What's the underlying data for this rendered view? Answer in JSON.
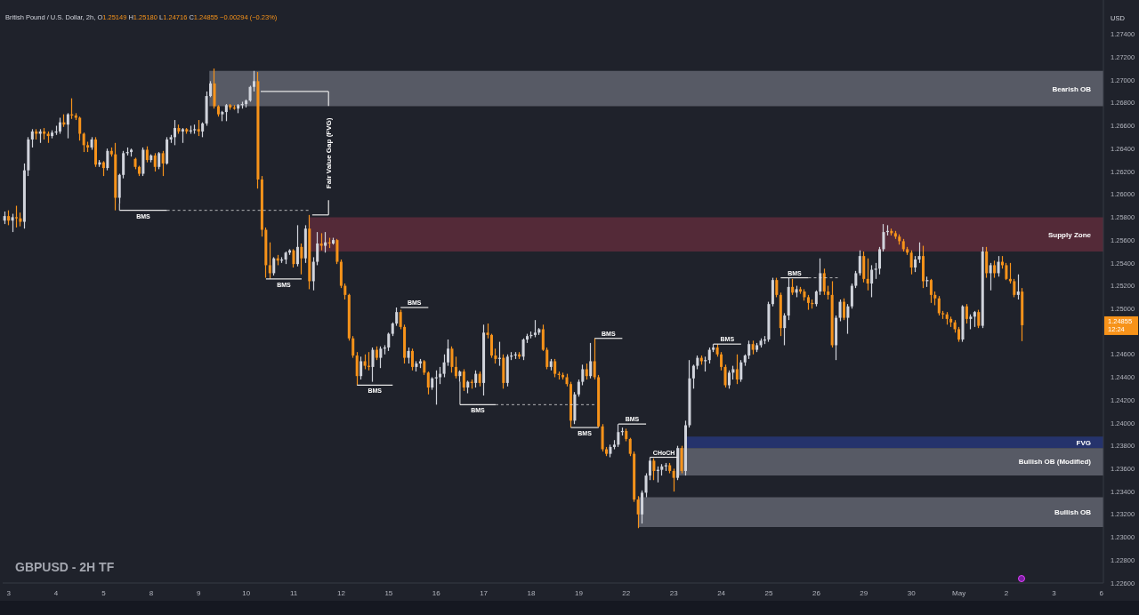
{
  "chart_data": {
    "type": "candlestick",
    "title": "GBPUSD - 2H TF",
    "subtitle": "British Pound / U.S. Dollar, 2h, O1.25149 H1.25180 L1.24716 C1.24855 −0.00294 (−0.23%)",
    "ylabel": "USD",
    "categories": [
      null,
      "3",
      null,
      null,
      null,
      null,
      null,
      null,
      null,
      null,
      null,
      null,
      null,
      "4",
      null,
      null,
      null,
      null,
      null,
      null,
      null,
      null,
      null,
      null,
      null,
      "5",
      null,
      null,
      null,
      null,
      null,
      null,
      null,
      null,
      null,
      null,
      null,
      "8",
      null,
      null,
      null,
      null,
      null,
      null,
      null,
      null,
      null,
      null,
      null,
      "9",
      null,
      null,
      null,
      null,
      null,
      null,
      null,
      null,
      null,
      null,
      null,
      "10",
      null,
      null,
      null,
      null,
      null,
      null,
      null,
      null,
      null,
      null,
      null,
      "11",
      null,
      null,
      null,
      null,
      null,
      null,
      null,
      null,
      null,
      null,
      null,
      "12",
      null,
      null,
      null,
      null,
      null,
      null,
      null,
      null,
      null,
      null,
      null,
      "15",
      null,
      null,
      null,
      null,
      null,
      null,
      null,
      null,
      null,
      null,
      null,
      "16",
      null,
      null,
      null,
      null,
      null,
      null,
      null,
      null,
      null,
      null,
      null,
      "17",
      null,
      null,
      null,
      null,
      null,
      null,
      null,
      null,
      null,
      null,
      null,
      "18",
      null,
      null,
      null,
      null,
      null,
      null,
      null,
      null,
      null,
      null,
      null,
      "19",
      null,
      null,
      null,
      null,
      null,
      null,
      null,
      null,
      null,
      null,
      null,
      "22",
      null,
      null,
      null,
      null,
      null,
      null,
      null,
      null,
      null,
      null,
      null,
      "23",
      null,
      null,
      null,
      null,
      null,
      null,
      null,
      null,
      null,
      null,
      null,
      "24",
      null,
      null,
      null,
      null,
      null,
      null,
      null,
      null,
      null,
      null,
      null,
      "25",
      null,
      null,
      null,
      null,
      null,
      null,
      null,
      null,
      null,
      null,
      null,
      "26",
      null,
      null,
      null,
      null,
      null,
      null,
      null,
      null,
      null,
      null,
      null,
      "29",
      null,
      null,
      null,
      null,
      null,
      null,
      null,
      null,
      null,
      null,
      null,
      "30",
      null,
      null,
      null,
      null,
      null,
      null,
      null,
      null,
      null,
      null,
      null,
      "May",
      null,
      null,
      null,
      null,
      null,
      null,
      null,
      null,
      null,
      null,
      null,
      "2",
      null,
      null,
      null,
      null,
      null,
      null,
      null,
      null,
      null,
      null,
      null,
      "3",
      null,
      null,
      null,
      null,
      null,
      null,
      null,
      null,
      null,
      null,
      null,
      "6"
    ],
    "ohlc": [
      [
        1.2577,
        1.2585,
        1.2574,
        1.2581
      ],
      [
        1.2581,
        1.2586,
        1.2573,
        1.2577
      ],
      [
        1.2577,
        1.2583,
        1.2567,
        1.258
      ],
      [
        1.258,
        1.259,
        1.2571,
        1.2579
      ],
      [
        1.2579,
        1.2584,
        1.2572,
        1.2576
      ],
      [
        1.2576,
        1.2627,
        1.257,
        1.2621
      ],
      [
        1.2621,
        1.265,
        1.2616,
        1.2648
      ],
      [
        1.2648,
        1.2657,
        1.2641,
        1.2655
      ],
      [
        1.2655,
        1.2657,
        1.2648,
        1.2653
      ],
      [
        1.2653,
        1.2657,
        1.2645,
        1.2655
      ],
      [
        1.2655,
        1.2658,
        1.2648,
        1.2653
      ],
      [
        1.2653,
        1.2655,
        1.2645,
        1.2651
      ],
      [
        1.2651,
        1.2656,
        1.2649,
        1.2654
      ],
      [
        1.2654,
        1.266,
        1.2652,
        1.2655
      ],
      [
        1.2655,
        1.2667,
        1.2653,
        1.2663
      ],
      [
        1.2663,
        1.267,
        1.2659,
        1.2661
      ],
      [
        1.2661,
        1.2671,
        1.2649,
        1.267
      ],
      [
        1.267,
        1.2684,
        1.2666,
        1.2669
      ],
      [
        1.2669,
        1.2671,
        1.2665,
        1.2667
      ],
      [
        1.2667,
        1.2668,
        1.2647,
        1.2653
      ],
      [
        1.2653,
        1.2654,
        1.2637,
        1.2643
      ],
      [
        1.2643,
        1.2646,
        1.2637,
        1.2641
      ],
      [
        1.2641,
        1.265,
        1.2639,
        1.2648
      ],
      [
        1.2648,
        1.265,
        1.2624,
        1.2626
      ],
      [
        1.2626,
        1.263,
        1.2624,
        1.2628
      ],
      [
        1.2628,
        1.2629,
        1.2616,
        1.2623
      ],
      [
        1.2623,
        1.264,
        1.2621,
        1.2638
      ],
      [
        1.2638,
        1.2641,
        1.2633,
        1.2635
      ],
      [
        1.2635,
        1.2645,
        1.2586,
        1.2597
      ],
      [
        1.2597,
        1.2618,
        1.2592,
        1.2617
      ],
      [
        1.2617,
        1.2638,
        1.2614,
        1.2636
      ],
      [
        1.2636,
        1.2641,
        1.2634,
        1.2637
      ],
      [
        1.2637,
        1.264,
        1.2633,
        1.2639
      ],
      [
        1.2631,
        1.2632,
        1.2622,
        1.2624
      ],
      [
        1.2624,
        1.2625,
        1.2616,
        1.2618
      ],
      [
        1.2618,
        1.2641,
        1.2616,
        1.2639
      ],
      [
        1.2639,
        1.2642,
        1.2628,
        1.263
      ],
      [
        1.263,
        1.2635,
        1.2628,
        1.2634
      ],
      [
        1.2634,
        1.2636,
        1.262,
        1.2624
      ],
      [
        1.2624,
        1.2637,
        1.2622,
        1.2636
      ],
      [
        1.2636,
        1.2638,
        1.2616,
        1.2627
      ],
      [
        1.2627,
        1.265,
        1.2626,
        1.2648
      ],
      [
        1.2648,
        1.2652,
        1.2645,
        1.265
      ],
      [
        1.265,
        1.2665,
        1.2643,
        1.2658
      ],
      [
        1.2658,
        1.2661,
        1.2653,
        1.2655
      ],
      [
        1.2655,
        1.2658,
        1.2645,
        1.2657
      ],
      [
        1.2657,
        1.2658,
        1.2653,
        1.2655
      ],
      [
        1.2655,
        1.266,
        1.2653,
        1.2656
      ],
      [
        1.2656,
        1.2661,
        1.2653,
        1.2657
      ],
      [
        1.2657,
        1.2665,
        1.2651,
        1.2655
      ],
      [
        1.2655,
        1.2663,
        1.265,
        1.2662
      ],
      [
        1.2662,
        1.269,
        1.266,
        1.2686
      ],
      [
        1.2686,
        1.2699,
        1.2685,
        1.2697
      ],
      [
        1.2697,
        1.271,
        1.2675,
        1.2677
      ],
      [
        1.2677,
        1.2678,
        1.2668,
        1.267
      ],
      [
        1.267,
        1.2673,
        1.2664,
        1.2672
      ],
      [
        1.2672,
        1.2679,
        1.2664,
        1.2678
      ],
      [
        1.2678,
        1.2679,
        1.2674,
        1.2676
      ],
      [
        1.2676,
        1.2678,
        1.2674,
        1.2675
      ],
      [
        1.2675,
        1.2679,
        1.2671,
        1.2678
      ],
      [
        1.2678,
        1.2681,
        1.2675,
        1.2679
      ],
      [
        1.2679,
        1.2683,
        1.2676,
        1.2682
      ],
      [
        1.2682,
        1.2695,
        1.2681,
        1.2694
      ],
      [
        1.2694,
        1.2708,
        1.269,
        1.2699
      ],
      [
        1.2699,
        1.2707,
        1.2605,
        1.2613
      ],
      [
        1.2613,
        1.2616,
        1.2563,
        1.2569
      ],
      [
        1.2569,
        1.2571,
        1.2527,
        1.2538
      ],
      [
        1.2538,
        1.2558,
        1.2526,
        1.2531
      ],
      [
        1.2531,
        1.2545,
        1.2529,
        1.2544
      ],
      [
        1.2544,
        1.2547,
        1.2538,
        1.2542
      ],
      [
        1.2542,
        1.2545,
        1.254,
        1.2543
      ],
      [
        1.2543,
        1.255,
        1.2539,
        1.2549
      ],
      [
        1.2549,
        1.2552,
        1.2547,
        1.2551
      ],
      [
        1.2551,
        1.2552,
        1.2536,
        1.2539
      ],
      [
        1.2539,
        1.2573,
        1.2537,
        1.2554
      ],
      [
        1.2554,
        1.2557,
        1.253,
        1.2544
      ],
      [
        1.2544,
        1.2573,
        1.254,
        1.257
      ],
      [
        1.257,
        1.2582,
        1.2517,
        1.2524
      ],
      [
        1.2524,
        1.2545,
        1.2516,
        1.2541
      ],
      [
        1.2541,
        1.2567,
        1.2538,
        1.2557
      ],
      [
        1.2557,
        1.2566,
        1.2551,
        1.2555
      ],
      [
        1.2555,
        1.2567,
        1.2549,
        1.2558
      ],
      [
        1.2558,
        1.2562,
        1.2553,
        1.2557
      ],
      [
        1.2557,
        1.2562,
        1.2556,
        1.256
      ],
      [
        1.256,
        1.2561,
        1.2539,
        1.2541
      ],
      [
        1.2541,
        1.2543,
        1.2518,
        1.252
      ],
      [
        1.252,
        1.2522,
        1.2508,
        1.2512
      ],
      [
        1.2512,
        1.2513,
        1.2472,
        1.2474
      ],
      [
        1.2474,
        1.2476,
        1.2457,
        1.2459
      ],
      [
        1.2459,
        1.2462,
        1.2433,
        1.2441
      ],
      [
        1.2441,
        1.2458,
        1.2438,
        1.2454
      ],
      [
        1.2454,
        1.246,
        1.2447,
        1.245
      ],
      [
        1.245,
        1.2462,
        1.2446,
        1.2449
      ],
      [
        1.2449,
        1.2466,
        1.2436,
        1.2464
      ],
      [
        1.2464,
        1.2467,
        1.2455,
        1.2457
      ],
      [
        1.2457,
        1.2467,
        1.2448,
        1.2465
      ],
      [
        1.2465,
        1.2468,
        1.246,
        1.2466
      ],
      [
        1.2466,
        1.2479,
        1.2463,
        1.2478
      ],
      [
        1.2478,
        1.2488,
        1.2476,
        1.2487
      ],
      [
        1.2487,
        1.2501,
        1.2485,
        1.2497
      ],
      [
        1.2497,
        1.2499,
        1.2482,
        1.2484
      ],
      [
        1.2484,
        1.2486,
        1.2452,
        1.2457
      ],
      [
        1.2457,
        1.2466,
        1.2452,
        1.2463
      ],
      [
        1.2463,
        1.2465,
        1.2446,
        1.2449
      ],
      [
        1.2449,
        1.2454,
        1.2445,
        1.2452
      ],
      [
        1.2452,
        1.2456,
        1.2448,
        1.2454
      ],
      [
        1.2454,
        1.2455,
        1.2442,
        1.2444
      ],
      [
        1.2444,
        1.2445,
        1.2425,
        1.2431
      ],
      [
        1.2431,
        1.244,
        1.2429,
        1.2439
      ],
      [
        1.2439,
        1.2446,
        1.2416,
        1.244
      ],
      [
        1.244,
        1.2449,
        1.2434,
        1.2443
      ],
      [
        1.2443,
        1.246,
        1.244,
        1.2453
      ],
      [
        1.2453,
        1.2473,
        1.245,
        1.2465
      ],
      [
        1.2465,
        1.2467,
        1.2444,
        1.2449
      ],
      [
        1.2449,
        1.2458,
        1.2439,
        1.2441
      ],
      [
        1.2441,
        1.2446,
        1.2436,
        1.2445
      ],
      [
        1.2445,
        1.2447,
        1.2428,
        1.2431
      ],
      [
        1.2431,
        1.2437,
        1.2426,
        1.2436
      ],
      [
        1.2436,
        1.2438,
        1.243,
        1.2435
      ],
      [
        1.2435,
        1.2446,
        1.2431,
        1.2443
      ],
      [
        1.2443,
        1.2445,
        1.2432,
        1.2435
      ],
      [
        1.2435,
        1.2486,
        1.2424,
        1.2479
      ],
      [
        1.2479,
        1.2487,
        1.2474,
        1.2477
      ],
      [
        1.2477,
        1.2478,
        1.2457,
        1.2459
      ],
      [
        1.2459,
        1.2465,
        1.2452,
        1.2456
      ],
      [
        1.2456,
        1.2471,
        1.245,
        1.2457
      ],
      [
        1.2457,
        1.246,
        1.243,
        1.2435
      ],
      [
        1.2435,
        1.246,
        1.2432,
        1.2458
      ],
      [
        1.2458,
        1.2462,
        1.2455,
        1.2459
      ],
      [
        1.2459,
        1.2462,
        1.2456,
        1.246
      ],
      [
        1.246,
        1.2462,
        1.2456,
        1.2458
      ],
      [
        1.2458,
        1.2474,
        1.2455,
        1.2473
      ],
      [
        1.2473,
        1.2478,
        1.247,
        1.2476
      ],
      [
        1.2476,
        1.248,
        1.2474,
        1.2477
      ],
      [
        1.2477,
        1.249,
        1.2475,
        1.2479
      ],
      [
        1.2479,
        1.2483,
        1.2477,
        1.2482
      ],
      [
        1.2482,
        1.2486,
        1.2463,
        1.2464
      ],
      [
        1.2464,
        1.2466,
        1.2447,
        1.2449
      ],
      [
        1.2449,
        1.2456,
        1.2446,
        1.2454
      ],
      [
        1.2454,
        1.2456,
        1.244,
        1.2443
      ],
      [
        1.2443,
        1.2445,
        1.2438,
        1.2442
      ],
      [
        1.2442,
        1.2444,
        1.2438,
        1.244
      ],
      [
        1.244,
        1.2443,
        1.2432,
        1.2434
      ],
      [
        1.2434,
        1.2436,
        1.2396,
        1.2402
      ],
      [
        1.2402,
        1.2427,
        1.2399,
        1.2425
      ],
      [
        1.2425,
        1.2438,
        1.2423,
        1.2436
      ],
      [
        1.2436,
        1.2451,
        1.2433,
        1.2447
      ],
      [
        1.2447,
        1.2452,
        1.2438,
        1.2441
      ],
      [
        1.2441,
        1.247,
        1.2439,
        1.2454
      ],
      [
        1.2454,
        1.2474,
        1.2438,
        1.244
      ],
      [
        1.244,
        1.2442,
        1.2396,
        1.2397
      ],
      [
        1.2397,
        1.2399,
        1.2375,
        1.2377
      ],
      [
        1.2377,
        1.2379,
        1.2371,
        1.2373
      ],
      [
        1.2373,
        1.2381,
        1.237,
        1.2379
      ],
      [
        1.2379,
        1.2385,
        1.2377,
        1.2381
      ],
      [
        1.2381,
        1.2399,
        1.2379,
        1.2392
      ],
      [
        1.2392,
        1.2396,
        1.2389,
        1.2393
      ],
      [
        1.2393,
        1.2395,
        1.2384,
        1.2386
      ],
      [
        1.2386,
        1.2387,
        1.2371,
        1.2373
      ],
      [
        1.2373,
        1.2375,
        1.2331,
        1.2333
      ],
      [
        1.2333,
        1.2336,
        1.2308,
        1.232
      ],
      [
        1.232,
        1.2341,
        1.2312,
        1.2339
      ],
      [
        1.2339,
        1.2356,
        1.2335,
        1.2354
      ],
      [
        1.2354,
        1.237,
        1.235,
        1.2367
      ],
      [
        1.2367,
        1.2369,
        1.235,
        1.2358
      ],
      [
        1.2358,
        1.2362,
        1.2348,
        1.2359
      ],
      [
        1.2359,
        1.2364,
        1.2354,
        1.2362
      ],
      [
        1.2362,
        1.2365,
        1.2358,
        1.2363
      ],
      [
        1.2363,
        1.2365,
        1.2356,
        1.2358
      ],
      [
        1.2358,
        1.236,
        1.234,
        1.2352
      ],
      [
        1.2352,
        1.238,
        1.235,
        1.2378
      ],
      [
        1.2378,
        1.238,
        1.2356,
        1.2358
      ],
      [
        1.2358,
        1.2402,
        1.2354,
        1.2398
      ],
      [
        1.2398,
        1.2455,
        1.2396,
        1.2439
      ],
      [
        1.2439,
        1.2451,
        1.243,
        1.245
      ],
      [
        1.245,
        1.2459,
        1.2447,
        1.2457
      ],
      [
        1.2457,
        1.2459,
        1.2451,
        1.2454
      ],
      [
        1.2454,
        1.2458,
        1.2445,
        1.2455
      ],
      [
        1.2455,
        1.2466,
        1.2452,
        1.2464
      ],
      [
        1.2464,
        1.2469,
        1.2462,
        1.2466
      ],
      [
        1.2466,
        1.2469,
        1.2458,
        1.246
      ],
      [
        1.246,
        1.2462,
        1.2446,
        1.2449
      ],
      [
        1.2449,
        1.2451,
        1.2431,
        1.2433
      ],
      [
        1.2433,
        1.2446,
        1.243,
        1.2444
      ],
      [
        1.2444,
        1.245,
        1.2438,
        1.2447
      ],
      [
        1.2447,
        1.246,
        1.2434,
        1.2438
      ],
      [
        1.2438,
        1.2455,
        1.2436,
        1.2453
      ],
      [
        1.2453,
        1.246,
        1.245,
        1.2459
      ],
      [
        1.2459,
        1.2472,
        1.2456,
        1.2469
      ],
      [
        1.2469,
        1.2472,
        1.246,
        1.2464
      ],
      [
        1.2464,
        1.247,
        1.2462,
        1.2468
      ],
      [
        1.2468,
        1.2474,
        1.2466,
        1.2472
      ],
      [
        1.2472,
        1.2476,
        1.2469,
        1.2473
      ],
      [
        1.2473,
        1.2506,
        1.2471,
        1.2504
      ],
      [
        1.2504,
        1.2527,
        1.2502,
        1.2525
      ],
      [
        1.2525,
        1.2527,
        1.251,
        1.2512
      ],
      [
        1.2512,
        1.2514,
        1.2476,
        1.2483
      ],
      [
        1.2483,
        1.2496,
        1.2468,
        1.2494
      ],
      [
        1.2494,
        1.2527,
        1.249,
        1.2519
      ],
      [
        1.2519,
        1.2526,
        1.2512,
        1.2514
      ],
      [
        1.2514,
        1.252,
        1.251,
        1.2517
      ],
      [
        1.2517,
        1.2519,
        1.2513,
        1.2515
      ],
      [
        1.2515,
        1.2517,
        1.2507,
        1.251
      ],
      [
        1.251,
        1.2512,
        1.2499,
        1.2505
      ],
      [
        1.2505,
        1.2508,
        1.25,
        1.2504
      ],
      [
        1.2504,
        1.2516,
        1.2502,
        1.2515
      ],
      [
        1.2515,
        1.2544,
        1.2512,
        1.2531
      ],
      [
        1.2531,
        1.2535,
        1.2512,
        1.2515
      ],
      [
        1.2515,
        1.252,
        1.2508,
        1.2512
      ],
      [
        1.2512,
        1.2524,
        1.2466,
        1.2468
      ],
      [
        1.2468,
        1.2494,
        1.2455,
        1.2492
      ],
      [
        1.2492,
        1.2508,
        1.2489,
        1.2506
      ],
      [
        1.2506,
        1.2509,
        1.249,
        1.2492
      ],
      [
        1.2492,
        1.2504,
        1.2478,
        1.2502
      ],
      [
        1.2502,
        1.2522,
        1.25,
        1.252
      ],
      [
        1.252,
        1.2533,
        1.2518,
        1.2531
      ],
      [
        1.2531,
        1.2551,
        1.2529,
        1.2546
      ],
      [
        1.2546,
        1.255,
        1.2523,
        1.2526
      ],
      [
        1.2526,
        1.2544,
        1.2516,
        1.2522
      ],
      [
        1.2522,
        1.2538,
        1.251,
        1.2534
      ],
      [
        1.2534,
        1.254,
        1.2526,
        1.2535
      ],
      [
        1.2535,
        1.2554,
        1.253,
        1.2552
      ],
      [
        1.2552,
        1.2574,
        1.255,
        1.2567
      ],
      [
        1.2567,
        1.2573,
        1.2564,
        1.2568
      ],
      [
        1.2568,
        1.257,
        1.2564,
        1.2566
      ],
      [
        1.2566,
        1.2568,
        1.2561,
        1.2563
      ],
      [
        1.2563,
        1.2565,
        1.2556,
        1.2559
      ],
      [
        1.2559,
        1.2561,
        1.255,
        1.2552
      ],
      [
        1.2552,
        1.2554,
        1.2547,
        1.2549
      ],
      [
        1.2549,
        1.2551,
        1.253,
        1.2536
      ],
      [
        1.2536,
        1.2546,
        1.2532,
        1.2543
      ],
      [
        1.2543,
        1.2558,
        1.254,
        1.2546
      ],
      [
        1.2546,
        1.2555,
        1.2518,
        1.2524
      ],
      [
        1.2524,
        1.2528,
        1.2519,
        1.2525
      ],
      [
        1.2525,
        1.2526,
        1.2505,
        1.2512
      ],
      [
        1.2512,
        1.2515,
        1.2503,
        1.2509
      ],
      [
        1.2509,
        1.2511,
        1.2494,
        1.2496
      ],
      [
        1.2496,
        1.2498,
        1.2491,
        1.2495
      ],
      [
        1.2495,
        1.2497,
        1.2486,
        1.2491
      ],
      [
        1.2491,
        1.2493,
        1.2484,
        1.2488
      ],
      [
        1.2488,
        1.249,
        1.2479,
        1.2482
      ],
      [
        1.2482,
        1.2484,
        1.2471,
        1.2473
      ],
      [
        1.2473,
        1.2503,
        1.2471,
        1.2502
      ],
      [
        1.2502,
        1.2504,
        1.2487,
        1.2491
      ],
      [
        1.2491,
        1.2495,
        1.2482,
        1.2493
      ],
      [
        1.2493,
        1.2498,
        1.2484,
        1.2497
      ],
      [
        1.2497,
        1.2499,
        1.2483,
        1.2485
      ],
      [
        1.2485,
        1.2554,
        1.2483,
        1.255
      ],
      [
        1.255,
        1.2554,
        1.2527,
        1.2531
      ],
      [
        1.2531,
        1.254,
        1.2516,
        1.2538
      ],
      [
        1.2538,
        1.2542,
        1.2527,
        1.2531
      ],
      [
        1.2531,
        1.2546,
        1.2528,
        1.2541
      ],
      [
        1.2541,
        1.2546,
        1.2535,
        1.2538
      ],
      [
        1.2538,
        1.254,
        1.2525,
        1.2526
      ],
      [
        1.2526,
        1.254,
        1.2522,
        1.2524
      ],
      [
        1.2524,
        1.2526,
        1.251,
        1.2512
      ],
      [
        1.2512,
        1.253,
        1.2508,
        1.2515
      ],
      [
        1.25149,
        1.2518,
        1.24716,
        1.24855
      ],
      null,
      null,
      null,
      null,
      null,
      null,
      null,
      null,
      null,
      null,
      null,
      null,
      null,
      null,
      null,
      null,
      null,
      null,
      null,
      null
    ],
    "colors": [
      "#d1d4dc",
      "#f7931a",
      "#d1d4dc",
      "#f7931a",
      "#f7931a",
      "#d1d4dc",
      "#d1d4dc",
      "#d1d4dc",
      "#f7931a",
      "#d1d4dc",
      "#f7931a",
      "#f7931a",
      "#d1d4dc",
      "#d1d4dc",
      "#d1d4dc",
      "#f7931a",
      "#d1d4dc",
      "#f7931a",
      "#f7931a",
      "#f7931a",
      "#f7931a",
      "#f7931a",
      "#d1d4dc",
      "#f7931a",
      "#d1d4dc",
      "#f7931a",
      "#d1d4dc",
      "#f7931a",
      "#f7931a",
      "#d1d4dc",
      "#d1d4dc",
      "#d1d4dc",
      "#d1d4dc",
      "#f7931a",
      "#f7931a",
      "#d1d4dc",
      "#f7931a",
      "#d1d4dc",
      "#f7931a",
      "#d1d4dc",
      "#f7931a",
      "#d1d4dc",
      "#d1d4dc",
      "#d1d4dc",
      "#f7931a",
      "#d1d4dc",
      "#f7931a",
      "#d1d4dc",
      "#d1d4dc",
      "#f7931a",
      "#d1d4dc",
      "#d1d4dc",
      "#d1d4dc",
      "#f7931a",
      "#f7931a",
      "#d1d4dc",
      "#d1d4dc",
      "#f7931a",
      "#f7931a",
      "#d1d4dc",
      "#d1d4dc",
      "#d1d4dc",
      "#d1d4dc",
      "#d1d4dc",
      "#f7931a",
      "#f7931a",
      "#f7931a",
      "#f7931a",
      "#d1d4dc",
      "#f7931a",
      "#d1d4dc",
      "#d1d4dc",
      "#d1d4dc",
      "#f7931a",
      "#d1d4dc",
      "#f7931a",
      "#d1d4dc",
      "#f7931a",
      "#d1d4dc",
      "#d1d4dc",
      "#f7931a",
      "#d1d4dc",
      "#f7931a",
      "#d1d4dc",
      "#f7931a",
      "#f7931a",
      "#f7931a",
      "#f7931a",
      "#f7931a",
      "#f7931a",
      "#d1d4dc",
      "#f7931a",
      "#f7931a",
      "#d1d4dc",
      "#f7931a",
      "#d1d4dc",
      "#d1d4dc",
      "#d1d4dc",
      "#d1d4dc",
      "#d1d4dc",
      "#f7931a",
      "#f7931a",
      "#d1d4dc",
      "#f7931a",
      "#d1d4dc",
      "#d1d4dc",
      "#f7931a",
      "#f7931a",
      "#d1d4dc",
      "#d1d4dc",
      "#d1d4dc",
      "#d1d4dc",
      "#d1d4dc",
      "#f7931a",
      "#f7931a",
      "#d1d4dc",
      "#f7931a",
      "#d1d4dc",
      "#f7931a",
      "#d1d4dc",
      "#f7931a",
      "#d1d4dc",
      "#f7931a",
      "#f7931a",
      "#f7931a",
      "#d1d4dc",
      "#f7931a",
      "#d1d4dc",
      "#d1d4dc",
      "#d1d4dc",
      "#f7931a",
      "#d1d4dc",
      "#d1d4dc",
      "#d1d4dc",
      "#d1d4dc",
      "#d1d4dc",
      "#f7931a",
      "#f7931a",
      "#d1d4dc",
      "#f7931a",
      "#f7931a",
      "#f7931a",
      "#f7931a",
      "#f7931a",
      "#d1d4dc",
      "#d1d4dc",
      "#d1d4dc",
      "#f7931a",
      "#d1d4dc",
      "#f7931a",
      "#f7931a",
      "#f7931a",
      "#f7931a",
      "#d1d4dc",
      "#d1d4dc",
      "#d1d4dc",
      "#d1d4dc",
      "#f7931a",
      "#f7931a",
      "#f7931a",
      "#f7931a",
      "#d1d4dc",
      "#d1d4dc",
      "#d1d4dc",
      "#f7931a",
      "#d1d4dc",
      "#d1d4dc",
      "#d1d4dc",
      "#f7931a",
      "#f7931a",
      "#d1d4dc",
      "#f7931a",
      "#d1d4dc",
      "#d1d4dc",
      "#d1d4dc",
      "#d1d4dc",
      "#f7931a",
      "#d1d4dc",
      "#d1d4dc",
      "#d1d4dc",
      "#f7931a",
      "#f7931a",
      "#f7931a",
      "#d1d4dc",
      "#d1d4dc",
      "#f7931a",
      "#d1d4dc",
      "#d1d4dc",
      "#d1d4dc",
      "#f7931a",
      "#d1d4dc",
      "#d1d4dc",
      "#d1d4dc",
      "#d1d4dc",
      "#d1d4dc",
      "#f7931a",
      "#f7931a",
      "#d1d4dc",
      "#d1d4dc",
      "#f7931a",
      "#d1d4dc",
      "#f7931a",
      "#f7931a",
      "#f7931a",
      "#f7931a",
      "#d1d4dc",
      "#d1d4dc",
      "#f7931a",
      "#f7931a",
      "#f7931a",
      "#d1d4dc",
      "#d1d4dc",
      "#f7931a",
      "#d1d4dc",
      "#d1d4dc",
      "#d1d4dc",
      "#d1d4dc",
      "#f7931a",
      "#f7931a",
      "#d1d4dc",
      "#d1d4dc",
      "#d1d4dc",
      "#d1d4dc",
      "#d1d4dc",
      "#f7931a",
      "#f7931a",
      "#f7931a",
      "#f7931a",
      "#f7931a",
      "#f7931a",
      "#d1d4dc",
      "#d1d4dc",
      "#f7931a",
      "#d1d4dc",
      "#f7931a",
      "#f7931a",
      "#f7931a",
      "#f7931a",
      "#f7931a",
      "#f7931a",
      "#f7931a",
      "#f7931a",
      "#d1d4dc",
      "#f7931a",
      "#d1d4dc",
      "#d1d4dc",
      "#f7931a",
      "#d1d4dc",
      "#f7931a",
      "#d1d4dc",
      "#f7931a",
      "#d1d4dc",
      "#f7931a",
      "#f7931a",
      "#f7931a",
      "#f7931a",
      "#d1d4dc",
      "#f7931a",
      null,
      null,
      null,
      null,
      null,
      null,
      null,
      null,
      null,
      null,
      null,
      null,
      null,
      null,
      null,
      null,
      null,
      null,
      null,
      null
    ],
    "ylim": [
      1.226,
      1.277
    ],
    "yticks": [
      {
        "value": 1.226,
        "label": "1.22600"
      },
      {
        "value": 1.228,
        "label": "1.22800"
      },
      {
        "value": 1.23,
        "label": "1.23000"
      },
      {
        "value": 1.232,
        "label": "1.23200"
      },
      {
        "value": 1.234,
        "label": "1.23400"
      },
      {
        "value": 1.236,
        "label": "1.23600"
      },
      {
        "value": 1.238,
        "label": "1.23800"
      },
      {
        "value": 1.24,
        "label": "1.24000"
      },
      {
        "value": 1.242,
        "label": "1.24200"
      },
      {
        "value": 1.244,
        "label": "1.24400"
      },
      {
        "value": 1.246,
        "label": "1.24600"
      },
      {
        "value": 1.25,
        "label": "1.25000"
      },
      {
        "value": 1.252,
        "label": "1.25200"
      },
      {
        "value": 1.254,
        "label": "1.25400"
      },
      {
        "value": 1.256,
        "label": "1.25600"
      },
      {
        "value": 1.258,
        "label": "1.25800"
      },
      {
        "value": 1.26,
        "label": "1.26000"
      },
      {
        "value": 1.262,
        "label": "1.26200"
      },
      {
        "value": 1.264,
        "label": "1.26400"
      },
      {
        "value": 1.266,
        "label": "1.26600"
      },
      {
        "value": 1.268,
        "label": "1.26800"
      },
      {
        "value": 1.27,
        "label": "1.27000"
      },
      {
        "value": 1.272,
        "label": "1.27200"
      },
      {
        "value": 1.274,
        "label": "1.27400"
      }
    ],
    "bands": [
      {
        "axis": "y",
        "from": 1.2677,
        "to": 1.2708,
        "label": "Bearish OB",
        "color": "#5d606b"
      },
      {
        "axis": "y",
        "from": 1.255,
        "to": 1.258,
        "label": "Supply Zone",
        "color": "#5a2b3a"
      },
      {
        "axis": "y",
        "from": 1.2378,
        "to": 1.2388,
        "label": "FVG",
        "color": "#263573"
      },
      {
        "axis": "y",
        "from": 1.2354,
        "to": 1.2378,
        "label": "Bullish OB (Modified)",
        "color": "#5d606b"
      },
      {
        "axis": "y",
        "from": 1.2309,
        "to": 1.2335,
        "label": "Bullish OB",
        "color": "#5d606b"
      }
    ],
    "annotations": [
      "Fair Value Gap (FVG)",
      "BMS",
      "BMS",
      "BMS",
      "BMS",
      "BMS",
      "BMS",
      "BMS",
      "BMS",
      "CHoCH",
      "BMS",
      "BMS",
      {
        "text": "1.24855",
        "y": 1.24855
      },
      "12:24"
    ]
  }
}
